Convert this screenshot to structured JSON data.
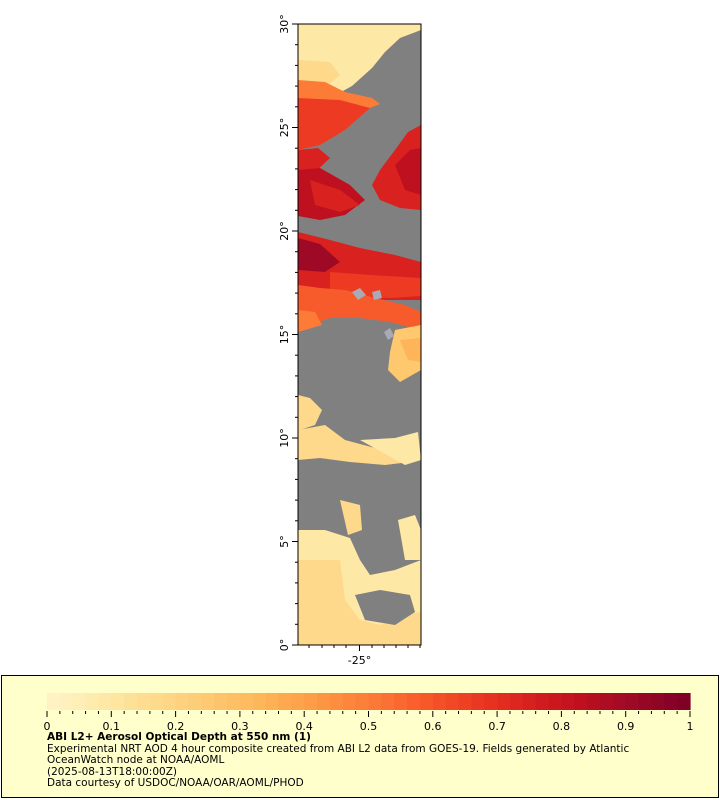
{
  "map": {
    "lat_ticks": [
      "30°",
      "25°",
      "20°",
      "15°",
      "10°",
      "5°",
      "0°"
    ],
    "lon_ticks": [
      "-25°"
    ],
    "colors": {
      "no_data": "#808080",
      "land_grey": "#a9aab4",
      "scale": [
        "#fff3c4",
        "#fee8a6",
        "#fed98b",
        "#fec86f",
        "#feb458",
        "#fd9a45",
        "#fc7c37",
        "#f85b2b",
        "#ec3b22",
        "#d9221f",
        "#bf101f",
        "#9e0a26",
        "#800026"
      ]
    }
  },
  "legend": {
    "tick_labels": [
      "0",
      "0.1",
      "0.2",
      "0.3",
      "0.4",
      "0.5",
      "0.6",
      "0.7",
      "0.8",
      "0.9",
      "1"
    ],
    "range": [
      0,
      1
    ],
    "title": "ABI L2+ Aerosol Optical Depth at 550 nm (1)",
    "line1": "Experimental NRT AOD 4 hour composite created from ABI L2 data from GOES-19. Fields generated by Atlantic",
    "line2": "OceanWatch node at NOAA/AOML",
    "line3": "(2025-08-13T18:00:00Z)",
    "line4": "Data courtesy of USDOC/NOAA/OAR/AOML/PHOD"
  }
}
